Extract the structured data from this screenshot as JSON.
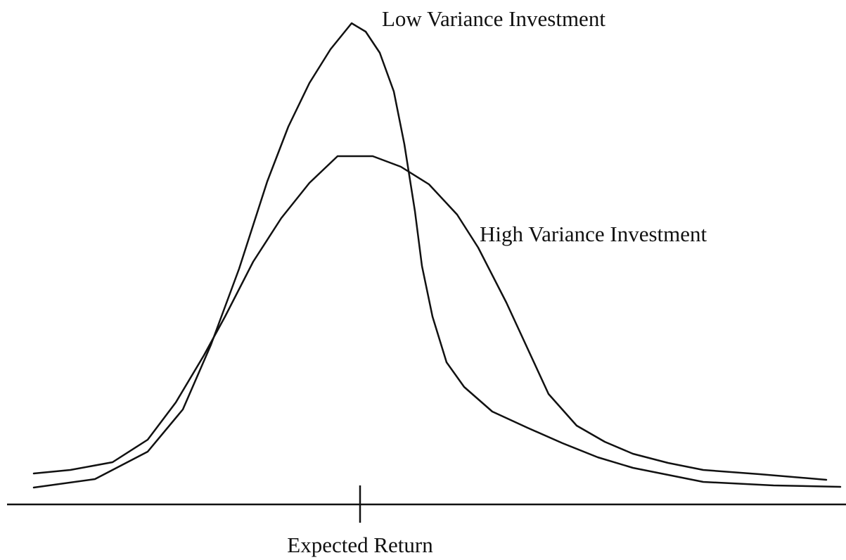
{
  "curves": [
    {
      "label": "Low Variance Investment"
    },
    {
      "label": "High Variance Investment"
    }
  ],
  "axis": {
    "marker_label": "Expected Return"
  }
}
